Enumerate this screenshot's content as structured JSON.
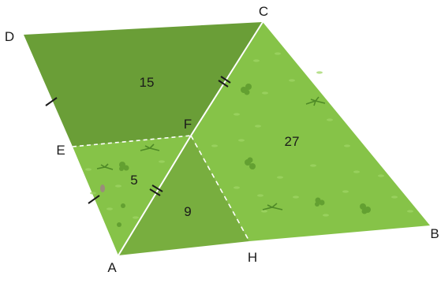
{
  "vertices": {
    "A": "A",
    "B": "B",
    "C": "C",
    "D": "D",
    "E": "E",
    "F": "F",
    "H": "H"
  },
  "regions": {
    "DCFE": "15",
    "FCBH": "27",
    "EFA": "5",
    "AFH": "9"
  },
  "colors": {
    "dark_green": "#6a9e37",
    "mid_green": "#78ae3f",
    "light_green": "#86c348",
    "edge_white": "#ffffff",
    "tick_mark": "#1a1a1a"
  }
}
